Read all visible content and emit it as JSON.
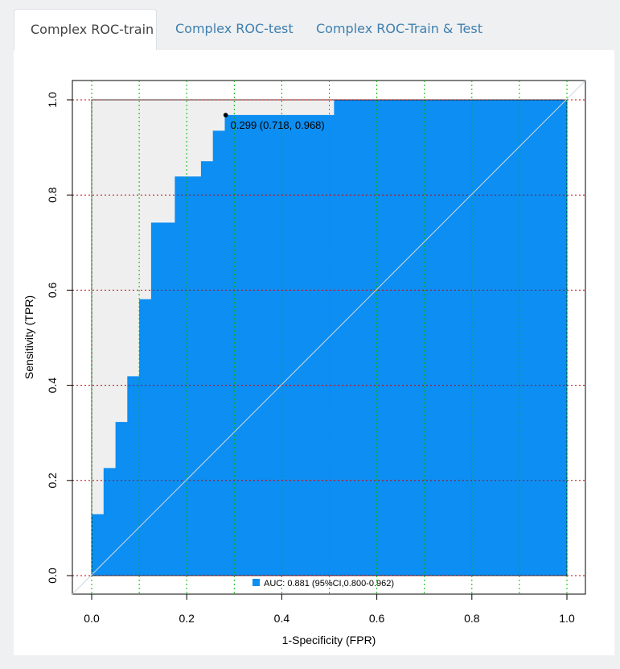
{
  "tabs": [
    {
      "label": "Complex ROC-train",
      "active": true
    },
    {
      "label": "Complex ROC-test",
      "active": false
    },
    {
      "label": "Complex ROC-Train & Test",
      "active": false
    }
  ],
  "colors": {
    "auc_fill": "#0c8ef2",
    "upper_fill": "#efefef",
    "grid_x": "#00bb00",
    "grid_y": "#cc0000"
  },
  "chart_data": {
    "type": "area",
    "title": "",
    "xlabel": "1-Specificity (FPR)",
    "ylabel": "Sensitivity (TPR)",
    "xlim": [
      0,
      1
    ],
    "ylim": [
      0,
      1
    ],
    "x_ticks": [
      "0.0",
      "0.2",
      "0.4",
      "0.6",
      "0.8",
      "1.0"
    ],
    "y_ticks": [
      "0.0",
      "0.2",
      "0.4",
      "0.6",
      "0.8",
      "1.0"
    ],
    "grid": true,
    "roc_curve": {
      "fpr": [
        0,
        0,
        0.025,
        0.025,
        0.05,
        0.05,
        0.075,
        0.075,
        0.1,
        0.1,
        0.125,
        0.125,
        0.175,
        0.175,
        0.23,
        0.23,
        0.255,
        0.255,
        0.28,
        0.28,
        0.51,
        0.51,
        1.0
      ],
      "tpr": [
        0,
        0.129,
        0.129,
        0.226,
        0.226,
        0.323,
        0.323,
        0.419,
        0.419,
        0.581,
        0.581,
        0.742,
        0.742,
        0.839,
        0.839,
        0.871,
        0.871,
        0.935,
        0.935,
        0.968,
        0.968,
        1.0,
        1.0
      ]
    },
    "best_threshold": {
      "label": "0.299 (0.718, 0.968)",
      "fpr": 0.282,
      "tpr": 0.968
    },
    "legend": "AUC: 0.881 (95%CI,0.800-0.962)",
    "legend_position": "bottom-center",
    "reference_line": "diagonal"
  }
}
